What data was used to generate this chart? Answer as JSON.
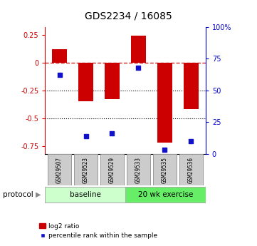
{
  "title": "GDS2234 / 16085",
  "samples": [
    "GSM29507",
    "GSM29523",
    "GSM29529",
    "GSM29533",
    "GSM29535",
    "GSM29536"
  ],
  "log2_ratios": [
    0.12,
    -0.35,
    -0.33,
    0.24,
    -0.72,
    -0.42
  ],
  "percentile_ranks": [
    62,
    14,
    16,
    68,
    3,
    10
  ],
  "ylim_left": [
    -0.82,
    0.32
  ],
  "ylim_right": [
    0,
    100
  ],
  "yticks_left": [
    0.25,
    0,
    -0.25,
    -0.5,
    -0.75
  ],
  "yticks_right": [
    100,
    75,
    50,
    25,
    0
  ],
  "hlines": [
    -0.25,
    -0.5
  ],
  "dashed_hline": 0,
  "bar_color": "#cc0000",
  "dot_color": "#1111cc",
  "bar_width": 0.55,
  "dot_size": 25,
  "background_color": "#ffffff",
  "plot_bg_color": "#ffffff",
  "baseline_label": "baseline",
  "exercise_label": "20 wk exercise",
  "baseline_color": "#ccffcc",
  "exercise_color": "#66ee66",
  "protocol_label": "protocol",
  "legend_bar_label": "log2 ratio",
  "legend_dot_label": "percentile rank within the sample",
  "sample_box_color": "#cccccc",
  "left_tick_color": "#cc0000",
  "right_tick_color": "#0000cc",
  "title_fontsize": 10,
  "tick_fontsize": 7,
  "sample_fontsize": 5.5,
  "protocol_fontsize": 7.5,
  "legend_fontsize": 6.5
}
